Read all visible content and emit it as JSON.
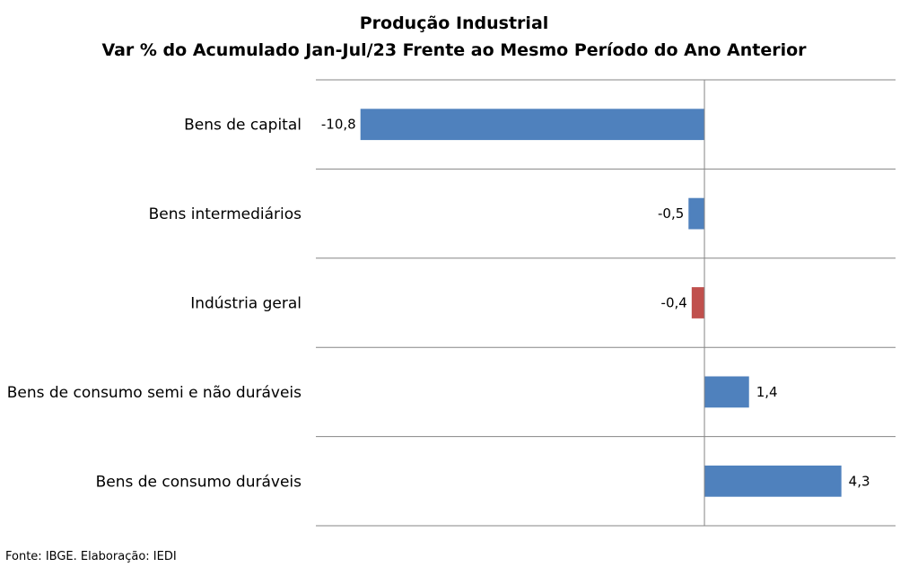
{
  "chart_data": {
    "type": "bar",
    "orientation": "horizontal",
    "title": "Produção Industrial",
    "subtitle": "Var % do Acumulado Jan-Jul/23 Frente ao Mesmo Período do Ano Anterior",
    "categories": [
      "Bens de capital",
      "Bens intermediários",
      "Indústria geral",
      "Bens de consumo semi e não duráveis",
      "Bens de consumo duráveis"
    ],
    "values": [
      -10.8,
      -0.5,
      -0.4,
      1.4,
      4.3
    ],
    "value_labels": [
      "-10,8",
      "-0,5",
      "-0,4",
      "1,4",
      "4,3"
    ],
    "bar_colors": [
      "#4f81bd",
      "#4f81bd",
      "#c0504d",
      "#4f81bd",
      "#4f81bd"
    ],
    "xlim": [
      -12.2,
      6.0
    ],
    "grid": true,
    "legend": "none"
  },
  "source": "Fonte: IBGE. Elaboração: IEDI"
}
